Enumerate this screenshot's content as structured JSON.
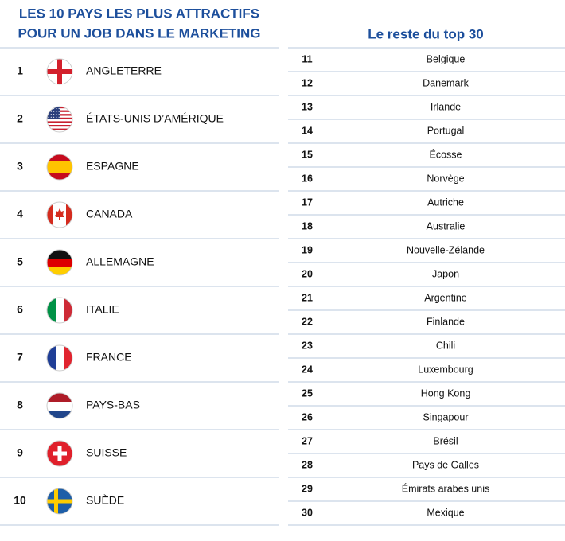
{
  "left": {
    "title": [
      "LES 10 PAYS LES PLUS ATTRACTIFS",
      "POUR UN JOB DANS LE MARKETING"
    ],
    "rows": [
      {
        "rank": 1,
        "country": "ANGLETERRE"
      },
      {
        "rank": 2,
        "country": "ÉTATS-UNIS D’AMÉRIQUE"
      },
      {
        "rank": 3,
        "country": "ESPAGNE"
      },
      {
        "rank": 4,
        "country": "CANADA"
      },
      {
        "rank": 5,
        "country": "ALLEMAGNE"
      },
      {
        "rank": 6,
        "country": "ITALIE"
      },
      {
        "rank": 7,
        "country": "FRANCE"
      },
      {
        "rank": 8,
        "country": "PAYS-BAS"
      },
      {
        "rank": 9,
        "country": "SUISSE"
      },
      {
        "rank": 10,
        "country": "SUÈDE"
      }
    ]
  },
  "right": {
    "title": "Le reste du top 30",
    "rows": [
      {
        "rank": 11,
        "country": "Belgique"
      },
      {
        "rank": 12,
        "country": "Danemark"
      },
      {
        "rank": 13,
        "country": "Irlande"
      },
      {
        "rank": 14,
        "country": "Portugal"
      },
      {
        "rank": 15,
        "country": "Écosse"
      },
      {
        "rank": 16,
        "country": "Norvège"
      },
      {
        "rank": 17,
        "country": "Autriche"
      },
      {
        "rank": 18,
        "country": "Australie"
      },
      {
        "rank": 19,
        "country": "Nouvelle-Zélande"
      },
      {
        "rank": 20,
        "country": "Japon"
      },
      {
        "rank": 21,
        "country": "Argentine"
      },
      {
        "rank": 22,
        "country": "Finlande"
      },
      {
        "rank": 23,
        "country": "Chili"
      },
      {
        "rank": 24,
        "country": "Luxembourg"
      },
      {
        "rank": 25,
        "country": "Hong Kong"
      },
      {
        "rank": 26,
        "country": "Singapour"
      },
      {
        "rank": 27,
        "country": "Brésil"
      },
      {
        "rank": 28,
        "country": "Pays de Galles"
      },
      {
        "rank": 29,
        "country": "Émirats arabes unis"
      },
      {
        "rank": 30,
        "country": "Mexique"
      }
    ]
  }
}
